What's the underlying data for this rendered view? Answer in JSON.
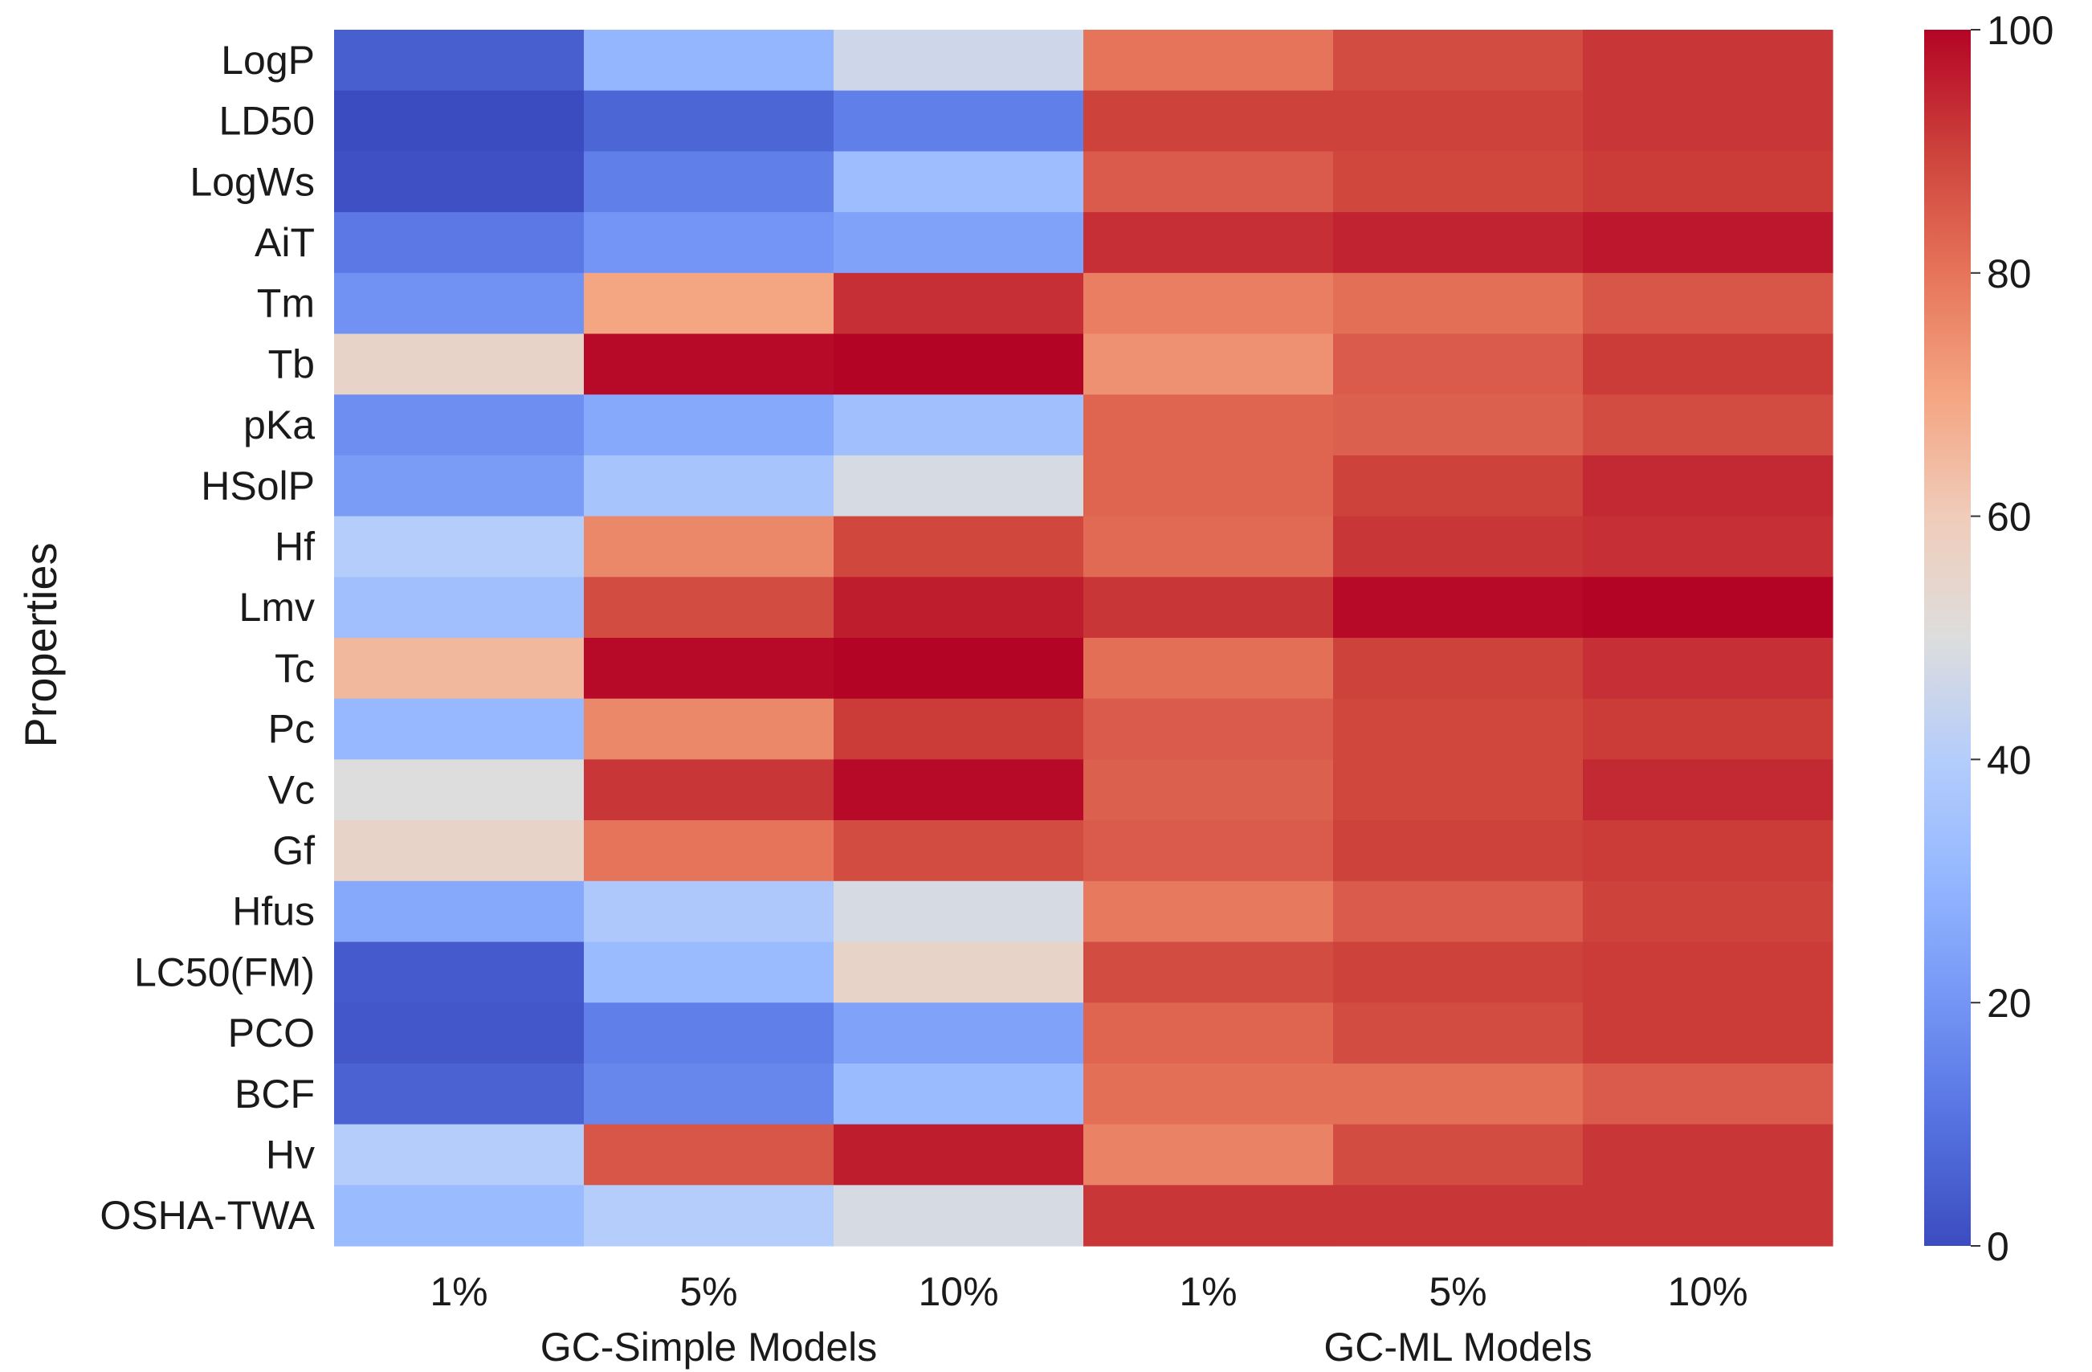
{
  "chart_data": {
    "type": "heatmap",
    "ylabel": "Properties",
    "rows": [
      "LogP",
      "LD50",
      "LogWs",
      "AiT",
      "Tm",
      "Tb",
      "pKa",
      "HSolP",
      "Hf",
      "Lmv",
      "Tc",
      "Pc",
      "Vc",
      "Gf",
      "Hfus",
      "LC50(FM)",
      "PCO",
      "BCF",
      "Hv",
      "OSHA-TWA"
    ],
    "columns": [
      "1%",
      "5%",
      "10%",
      "1%",
      "5%",
      "10%"
    ],
    "groups": [
      {
        "label": "GC-Simple Models",
        "columns": [
          0,
          1,
          2
        ]
      },
      {
        "label": "GC-ML Models",
        "columns": [
          3,
          4,
          5
        ]
      }
    ],
    "values": [
      [
        5,
        30,
        46,
        80,
        88,
        92
      ],
      [
        0,
        7,
        14,
        90,
        90,
        92
      ],
      [
        1,
        14,
        33,
        85,
        89,
        91
      ],
      [
        12,
        20,
        24,
        93,
        95,
        97
      ],
      [
        19,
        70,
        93,
        78,
        81,
        86
      ],
      [
        56,
        99,
        100,
        74,
        85,
        91
      ],
      [
        18,
        26,
        34,
        83,
        84,
        88
      ],
      [
        22,
        36,
        48,
        83,
        90,
        94
      ],
      [
        40,
        76,
        89,
        82,
        92,
        93
      ],
      [
        34,
        88,
        96,
        92,
        99,
        100
      ],
      [
        65,
        99,
        100,
        81,
        90,
        93
      ],
      [
        31,
        76,
        91,
        85,
        89,
        91
      ],
      [
        50,
        92,
        99,
        84,
        89,
        94
      ],
      [
        56,
        80,
        88,
        85,
        90,
        91
      ],
      [
        26,
        38,
        48,
        79,
        85,
        90
      ],
      [
        4,
        32,
        56,
        88,
        90,
        91
      ],
      [
        3,
        14,
        24,
        83,
        88,
        91
      ],
      [
        6,
        16,
        32,
        81,
        81,
        85
      ],
      [
        40,
        86,
        96,
        77,
        88,
        92
      ],
      [
        32,
        40,
        48,
        92,
        92,
        92
      ]
    ],
    "colorbar": {
      "min": 0,
      "max": 100,
      "ticks": [
        0,
        20,
        40,
        60,
        80,
        100
      ],
      "colormap": "coolwarm"
    },
    "grid": false
  }
}
